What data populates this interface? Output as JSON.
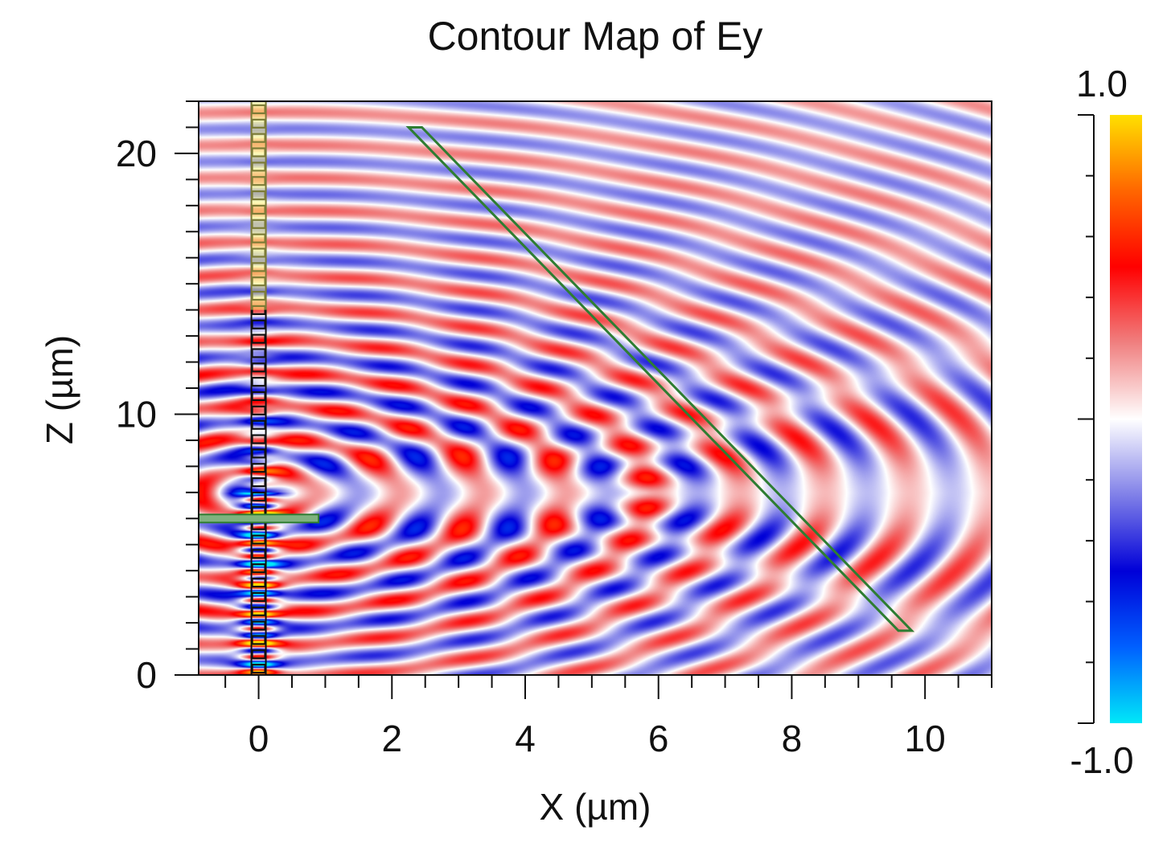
{
  "chart_data": {
    "type": "heatmap",
    "title": "Contour Map of Ey",
    "xlabel": "X (µm)",
    "ylabel": "Z (µm)",
    "xlim": [
      -0.9,
      11
    ],
    "ylim": [
      0,
      22
    ],
    "x_ticks": [
      {
        "value": 0,
        "label": "0"
      },
      {
        "value": 2,
        "label": "2"
      },
      {
        "value": 4,
        "label": "4"
      },
      {
        "value": 6,
        "label": "6"
      },
      {
        "value": 8,
        "label": "8"
      },
      {
        "value": 10,
        "label": "10"
      }
    ],
    "y_ticks": [
      {
        "value": 0,
        "label": "0"
      },
      {
        "value": 10,
        "label": "10"
      },
      {
        "value": 20,
        "label": "20"
      }
    ],
    "x_minor_step": 0.5,
    "y_minor_step": 1,
    "colorbar": {
      "max_label": "1.0",
      "min_label": "-1.0",
      "vmin": -1.0,
      "vmax": 1.0,
      "colors": [
        "#00e8f8",
        "#0060ff",
        "#0000d8",
        "#8080e8",
        "#ffffff",
        "#f08080",
        "#ff0000",
        "#ff6600",
        "#ffe000"
      ]
    },
    "field_params": {
      "source_x": 0,
      "source_z": 7,
      "wavelength": 1.25,
      "mirror_x": 2.9,
      "amplitude": 0.42
    },
    "overlays": {
      "grating": {
        "x": 0,
        "z_start": 0,
        "z_end": 22,
        "period": 0.55
      },
      "horizontal_bar": {
        "x_start": -0.9,
        "x_end": 0.9,
        "z": 6
      },
      "slab": [
        [
          2.25,
          21
        ],
        [
          2.45,
          21
        ],
        [
          9.8,
          1.7
        ],
        [
          9.6,
          1.7
        ]
      ]
    }
  }
}
